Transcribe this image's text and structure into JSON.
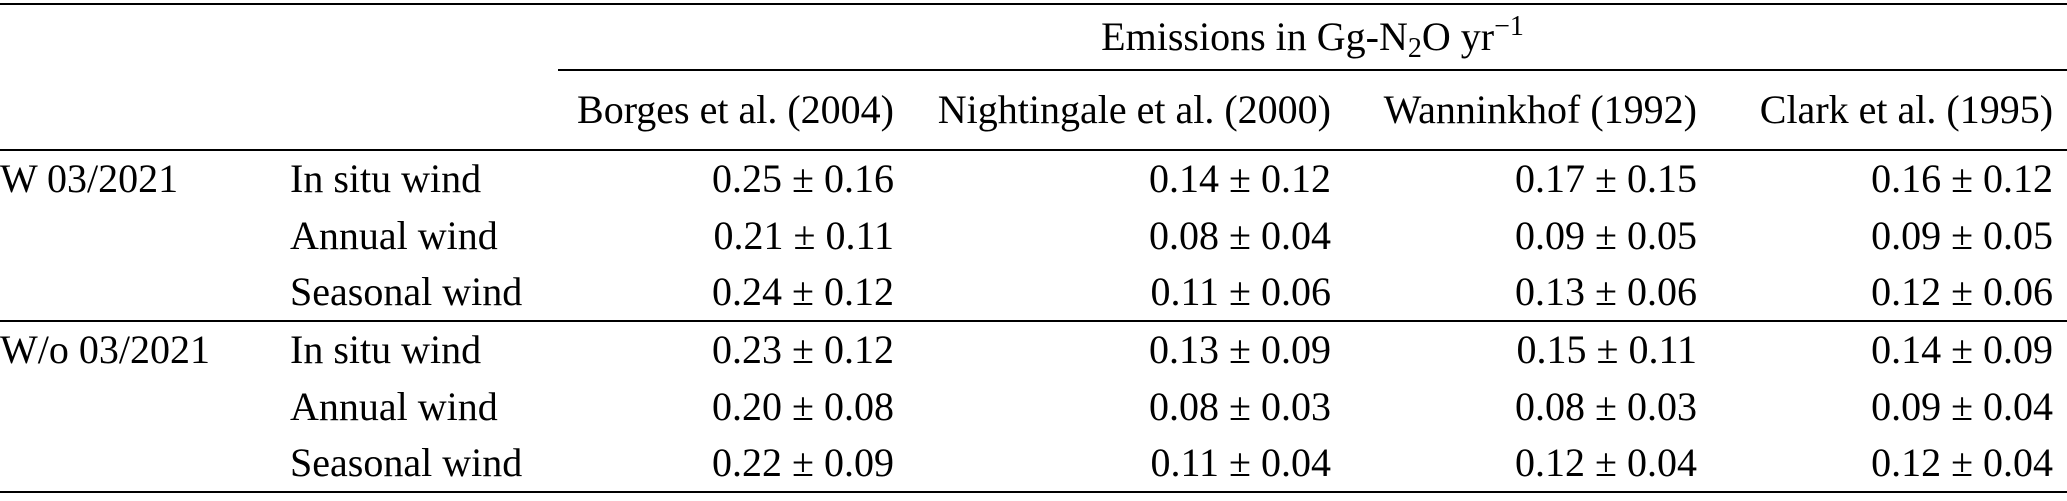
{
  "table": {
    "title": {
      "prefix": "Emissions in Gg-N",
      "sub": "2",
      "mid": "O yr",
      "sup": "−1"
    },
    "columns": [
      "Borges et al. (2004)",
      "Nightingale et al. (2000)",
      "Wanninkhof (1992)",
      "Clark et al. (1995)"
    ],
    "groups": [
      {
        "label": "W 03/2021",
        "rows": [
          {
            "wind": "In situ wind",
            "values": [
              "0.25 ± 0.16",
              "0.14 ± 0.12",
              "0.17 ± 0.15",
              "0.16 ± 0.12"
            ]
          },
          {
            "wind": "Annual wind",
            "values": [
              "0.21 ± 0.11",
              "0.08 ± 0.04",
              "0.09 ± 0.05",
              "0.09 ± 0.05"
            ]
          },
          {
            "wind": "Seasonal wind",
            "values": [
              "0.24 ± 0.12",
              "0.11 ± 0.06",
              "0.13 ± 0.06",
              "0.12 ± 0.06"
            ]
          }
        ]
      },
      {
        "label": "W/o 03/2021",
        "rows": [
          {
            "wind": "In situ wind",
            "values": [
              "0.23 ± 0.12",
              "0.13 ± 0.09",
              "0.15 ± 0.11",
              "0.14 ± 0.09"
            ]
          },
          {
            "wind": "Annual wind",
            "values": [
              "0.20 ± 0.08",
              "0.08 ± 0.03",
              "0.08 ± 0.03",
              "0.09 ± 0.04"
            ]
          },
          {
            "wind": "Seasonal wind",
            "values": [
              "0.22 ± 0.09",
              "0.11 ± 0.04",
              "0.12 ± 0.04",
              "0.12 ± 0.04"
            ]
          }
        ]
      }
    ]
  }
}
